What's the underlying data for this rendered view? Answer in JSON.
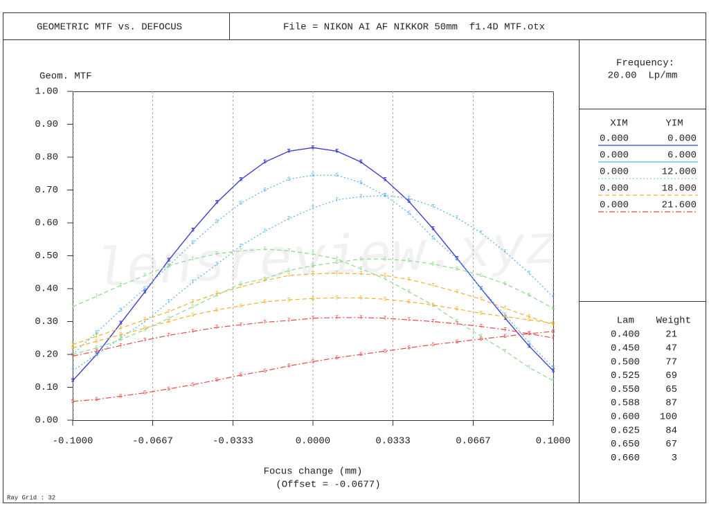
{
  "header": {
    "title": "GEOMETRIC MTF vs. DEFOCUS",
    "file": "File = NIKON AI AF NIKKOR 50mm  f1.4D MTF.otx"
  },
  "frequency": {
    "label": "Frequency:",
    "value": "20.00  Lp/mm"
  },
  "fields": {
    "headers": [
      "XIM",
      "YIM"
    ],
    "rows": [
      {
        "xim": "0.000",
        "yim": "0.000",
        "color": "#3a3ad0",
        "dash": "none"
      },
      {
        "xim": "0.000",
        "yim": "6.000",
        "color": "#40c0d8",
        "dash": "none"
      },
      {
        "xim": "0.000",
        "yim": "12.000",
        "color": "#90d890",
        "dash": "2,3"
      },
      {
        "xim": "0.000",
        "yim": "18.000",
        "color": "#f0b030",
        "dash": "6,4"
      },
      {
        "xim": "0.000",
        "yim": "21.600",
        "color": "#e84848",
        "dash": "8,3,2,3"
      }
    ]
  },
  "wavelengths": {
    "headers": [
      "Lam",
      "Weight"
    ],
    "rows": [
      [
        "0.400",
        "21"
      ],
      [
        "0.450",
        "47"
      ],
      [
        "0.500",
        "77"
      ],
      [
        "0.525",
        "69"
      ],
      [
        "0.550",
        "65"
      ],
      [
        "0.588",
        "87"
      ],
      [
        "0.600",
        "100"
      ],
      [
        "0.625",
        "84"
      ],
      [
        "0.650",
        "67"
      ],
      [
        "0.660",
        "3"
      ]
    ]
  },
  "footer": "Ray Grid : 32",
  "watermark": "lensreview.xyz",
  "chart_data": {
    "type": "line",
    "y_label": "Geom. MTF",
    "x_label": "Focus change (mm)",
    "x_sublabel": "(Offset = -0.0677)",
    "xlim": [
      -0.1,
      0.1
    ],
    "xticks": [
      {
        "value": -0.1,
        "label": "-0.1000"
      },
      {
        "value": -0.0667,
        "label": "-0.0667"
      },
      {
        "value": -0.0333,
        "label": "-0.0333"
      },
      {
        "value": 0,
        "label": "0.0000"
      },
      {
        "value": 0.0333,
        "label": "0.0333"
      },
      {
        "value": 0.0667,
        "label": "0.0667"
      },
      {
        "value": 0.1,
        "label": "0.1000"
      }
    ],
    "ylim": [
      0,
      1
    ],
    "yticks": [
      {
        "value": 0,
        "label": "0.00"
      },
      {
        "value": 0.1,
        "label": "0.10"
      },
      {
        "value": 0.2,
        "label": "0.20"
      },
      {
        "value": 0.3,
        "label": "0.30"
      },
      {
        "value": 0.4,
        "label": "0.40"
      },
      {
        "value": 0.5,
        "label": "0.50"
      },
      {
        "value": 0.6,
        "label": "0.60"
      },
      {
        "value": 0.7,
        "label": "0.70"
      },
      {
        "value": 0.8,
        "label": "0.80"
      },
      {
        "value": 0.9,
        "label": "0.90"
      },
      {
        "value": 1,
        "label": "1.00"
      }
    ],
    "grid": "x",
    "x": [
      -0.1,
      -0.09,
      -0.08,
      -0.07,
      -0.06,
      -0.05,
      -0.04,
      -0.03,
      -0.02,
      -0.01,
      0,
      0.01,
      0.02,
      0.03,
      0.04,
      0.05,
      0.06,
      0.07,
      0.08,
      0.09,
      0.1
    ],
    "series": [
      {
        "marker": "T",
        "color": "#3a3ad0",
        "dash": "none",
        "values": [
          0.12,
          0.2,
          0.295,
          0.39,
          0.487,
          0.578,
          0.662,
          0.732,
          0.785,
          0.818,
          0.829,
          0.818,
          0.785,
          0.732,
          0.665,
          0.582,
          0.492,
          0.4,
          0.31,
          0.225,
          0.15
        ]
      },
      {
        "marker": "S",
        "color": "#3a3ad0",
        "dash": "none",
        "values": [
          0.12,
          0.2,
          0.295,
          0.39,
          0.487,
          0.578,
          0.662,
          0.732,
          0.785,
          0.818,
          0.829,
          0.818,
          0.785,
          0.732,
          0.665,
          0.582,
          0.492,
          0.4,
          0.31,
          0.225,
          0.15
        ]
      },
      {
        "marker": "T",
        "color": "#55b0e8",
        "dash": "2,3",
        "values": [
          0.15,
          0.2,
          0.25,
          0.3,
          0.36,
          0.42,
          0.474,
          0.53,
          0.575,
          0.613,
          0.645,
          0.67,
          0.68,
          0.683,
          0.675,
          0.65,
          0.615,
          0.57,
          0.512,
          0.447,
          0.375
        ]
      },
      {
        "marker": "S",
        "color": "#55b0e8",
        "dash": "2,3",
        "values": [
          0.2,
          0.267,
          0.335,
          0.4,
          0.47,
          0.54,
          0.604,
          0.66,
          0.7,
          0.733,
          0.745,
          0.745,
          0.722,
          0.683,
          0.63,
          0.555,
          0.49,
          0.4,
          0.32,
          0.235,
          0.16
        ]
      },
      {
        "marker": "T",
        "color": "#90d890",
        "dash": "6,4",
        "values": [
          0.345,
          0.377,
          0.41,
          0.44,
          0.47,
          0.49,
          0.506,
          0.515,
          0.52,
          0.515,
          0.505,
          0.49,
          0.46,
          0.43,
          0.39,
          0.35,
          0.3,
          0.255,
          0.21,
          0.16,
          0.12
        ]
      },
      {
        "marker": "S",
        "color": "#90d890",
        "dash": "6,4",
        "values": [
          0.2,
          0.22,
          0.245,
          0.275,
          0.31,
          0.345,
          0.38,
          0.415,
          0.43,
          0.455,
          0.47,
          0.48,
          0.49,
          0.49,
          0.485,
          0.475,
          0.46,
          0.44,
          0.415,
          0.38,
          0.34
        ]
      },
      {
        "marker": "T",
        "color": "#f0b030",
        "dash": "6,4",
        "values": [
          0.23,
          0.255,
          0.28,
          0.305,
          0.33,
          0.36,
          0.385,
          0.405,
          0.425,
          0.44,
          0.445,
          0.447,
          0.445,
          0.44,
          0.428,
          0.41,
          0.39,
          0.368,
          0.34,
          0.315,
          0.29
        ]
      },
      {
        "marker": "S",
        "color": "#f0b030",
        "dash": "6,4",
        "values": [
          0.22,
          0.24,
          0.26,
          0.28,
          0.3,
          0.32,
          0.335,
          0.348,
          0.36,
          0.366,
          0.37,
          0.372,
          0.372,
          0.368,
          0.36,
          0.35,
          0.338,
          0.325,
          0.315,
          0.305,
          0.295
        ]
      },
      {
        "marker": "T",
        "color": "#e84848",
        "dash": "8,3,2,3",
        "values": [
          0.195,
          0.21,
          0.227,
          0.243,
          0.258,
          0.27,
          0.282,
          0.29,
          0.298,
          0.303,
          0.31,
          0.312,
          0.312,
          0.31,
          0.305,
          0.3,
          0.293,
          0.285,
          0.275,
          0.263,
          0.25
        ]
      },
      {
        "marker": "S",
        "color": "#e84848",
        "dash": "8,3,2,3",
        "values": [
          0.057,
          0.063,
          0.073,
          0.083,
          0.095,
          0.108,
          0.122,
          0.137,
          0.15,
          0.165,
          0.178,
          0.19,
          0.2,
          0.21,
          0.22,
          0.23,
          0.238,
          0.247,
          0.255,
          0.263,
          0.27
        ]
      }
    ]
  }
}
